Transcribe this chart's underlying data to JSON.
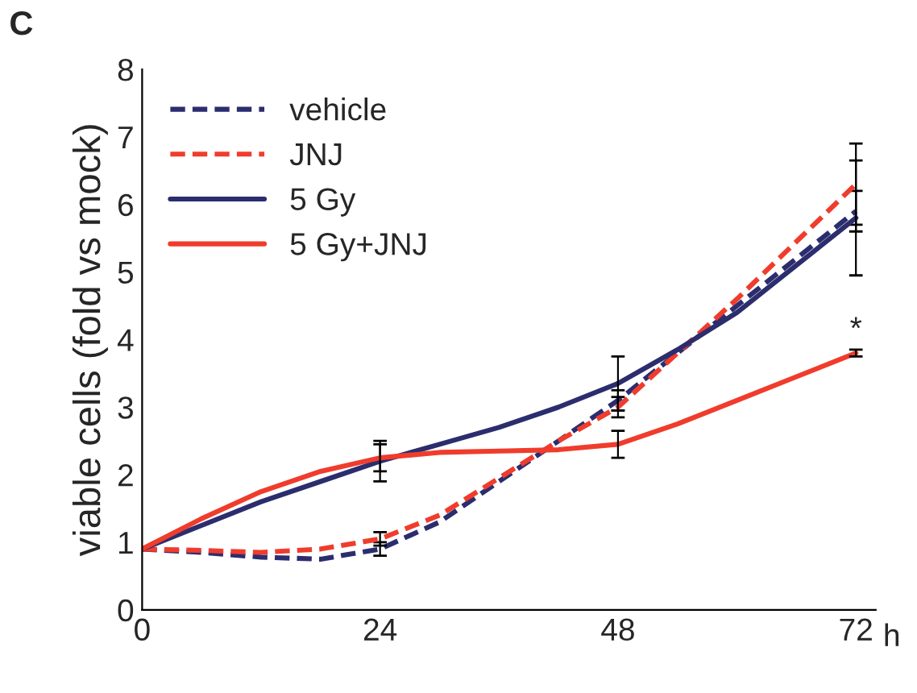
{
  "chart_data": {
    "type": "line",
    "ylabel": "viable cells (fold vs mock)",
    "xlabel": "h",
    "x": [
      0,
      6,
      12,
      18,
      24,
      30,
      36,
      42,
      48,
      54,
      60,
      66,
      72
    ],
    "xlim": [
      0,
      74
    ],
    "xticks": [
      0,
      24,
      48,
      72
    ],
    "ylim": [
      0,
      8
    ],
    "yticks": [
      0,
      1,
      2,
      3,
      4,
      5,
      6,
      7,
      8
    ],
    "grid": false,
    "legend": "top left",
    "marker": "none",
    "series": [
      {
        "name": "vehicle",
        "color": "#2b2d6e",
        "line_style": "dashed",
        "values": [
          0.9,
          0.85,
          0.78,
          0.75,
          0.9,
          1.3,
          1.9,
          2.5,
          3.1,
          3.8,
          4.5,
          5.2,
          5.9
        ],
        "errors": [
          null,
          null,
          null,
          null,
          0.1,
          null,
          null,
          null,
          0.15,
          null,
          null,
          null,
          0.3
        ]
      },
      {
        "name": "JNJ",
        "color": "#f03c2c",
        "line_style": "dashed",
        "values": [
          0.9,
          0.88,
          0.85,
          0.9,
          1.05,
          1.4,
          1.95,
          2.5,
          3.0,
          3.8,
          4.6,
          5.45,
          6.3
        ],
        "errors": [
          null,
          null,
          null,
          null,
          0.1,
          null,
          null,
          null,
          0.15,
          null,
          null,
          null,
          0.6
        ]
      },
      {
        "name": "5 Gy",
        "color": "#2b2d6e",
        "line_style": "solid",
        "values": [
          0.9,
          1.25,
          1.6,
          1.9,
          2.2,
          2.45,
          2.7,
          3.0,
          3.35,
          3.85,
          4.4,
          5.1,
          5.8
        ],
        "errors": [
          null,
          null,
          null,
          null,
          0.3,
          null,
          null,
          null,
          0.4,
          null,
          null,
          null,
          0.85
        ]
      },
      {
        "name": "5 Gy+JNJ",
        "color": "#f03c2c",
        "line_style": "solid",
        "values": [
          0.9,
          1.35,
          1.75,
          2.05,
          2.25,
          2.33,
          2.35,
          2.37,
          2.45,
          2.75,
          3.1,
          3.45,
          3.8
        ],
        "errors": [
          null,
          null,
          null,
          null,
          0.2,
          null,
          null,
          null,
          0.2,
          null,
          null,
          null,
          0.05
        ]
      }
    ],
    "annotations": [
      "C",
      "*"
    ]
  }
}
